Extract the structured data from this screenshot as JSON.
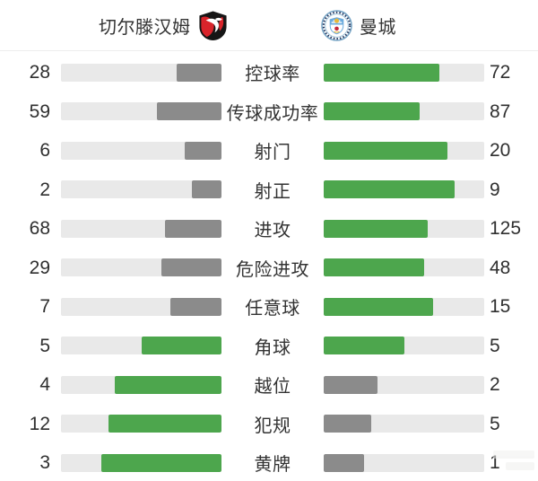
{
  "header": {
    "home": {
      "name": "切尔滕汉姆"
    },
    "away": {
      "name": "曼城"
    }
  },
  "colors": {
    "leading_bar": "#4da64d",
    "trailing_bar": "#8b8b8b",
    "bar_track": "#e9e9e9",
    "text": "#333333",
    "cheltenham_red": "#d9242b",
    "cheltenham_black": "#161616",
    "mancity_blue": "#6cabdd",
    "mancity_navy": "#24375f",
    "mancity_gold": "#e8b83a",
    "mancity_red": "#c5283c"
  },
  "chart_data": {
    "type": "bar",
    "orientation": "horizontal-paired",
    "title": "",
    "legend_position": "header",
    "grid": false,
    "teams": [
      "切尔滕汉姆",
      "曼城"
    ],
    "categories": [
      "控球率",
      "传球成功率",
      "射门",
      "射正",
      "进攻",
      "危险进攻",
      "任意球",
      "角球",
      "越位",
      "犯规",
      "黄牌"
    ],
    "series": [
      {
        "name": "切尔滕汉姆",
        "values": [
          28,
          59,
          6,
          2,
          68,
          29,
          7,
          5,
          4,
          12,
          3
        ]
      },
      {
        "name": "曼城",
        "values": [
          72,
          87,
          20,
          9,
          125,
          48,
          15,
          5,
          2,
          5,
          1
        ]
      }
    ],
    "bar_width_rule": "fill fraction = value / (home_value + away_value)",
    "color_rule": "side with higher or equal value is green, lower value side is gray"
  }
}
